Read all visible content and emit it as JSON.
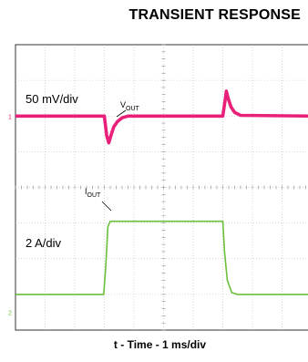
{
  "chart_data": {
    "type": "line",
    "title": "TRANSIENT RESPONSE",
    "xlabel": "t - Time - 1 ms/div",
    "x_divisions": 10,
    "y_divisions": 8,
    "grid": true,
    "series": [
      {
        "name": "V",
        "name_sub": "OUT",
        "scale_label": "50 mV/div",
        "color": "#e8207a",
        "unit": "div",
        "x": [
          0,
          3.0,
          3.08,
          3.15,
          3.22,
          3.32,
          3.45,
          3.6,
          3.8,
          4.0,
          6.5,
          7.0,
          7.08,
          7.12,
          7.18,
          7.28,
          7.4,
          7.6,
          10
        ],
        "y": [
          6.0,
          6.0,
          5.45,
          5.25,
          5.45,
          5.7,
          5.85,
          5.95,
          6.0,
          6.0,
          6.0,
          6.0,
          6.45,
          6.7,
          6.5,
          6.25,
          6.1,
          6.02,
          6.0
        ]
      },
      {
        "name": "I",
        "name_sub": "OUT",
        "scale_label": "2 A/div",
        "color": "#6cbf3a",
        "unit": "div",
        "x": [
          0,
          2.98,
          3.05,
          3.12,
          3.2,
          3.5,
          7.0,
          7.06,
          7.15,
          7.3,
          7.5,
          10
        ],
        "y": [
          1.0,
          1.0,
          1.8,
          2.9,
          3.05,
          3.05,
          3.05,
          2.2,
          1.4,
          1.05,
          1.0,
          1.0
        ]
      }
    ],
    "markers": [
      {
        "series": 0,
        "label": "1",
        "level": 6.0
      },
      {
        "series": 1,
        "label": "2",
        "level": 0.5
      }
    ]
  }
}
